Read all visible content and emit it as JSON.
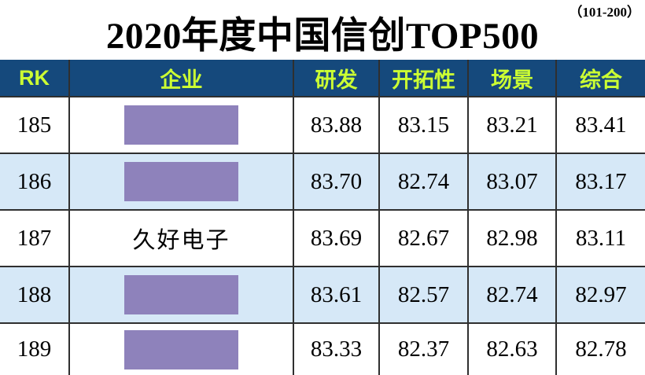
{
  "page": {
    "title": "2020年度中国信创TOP500",
    "range_note": "（101-200）"
  },
  "colors": {
    "header_bg": "#15497C",
    "header_text": "#CCFF33",
    "row_alt_bg": "#D6E8F7",
    "row_bg": "#FFFFFF",
    "redaction_fill": "#8E82BB",
    "grid_line": "#2F2F2F",
    "title_text": "#000000"
  },
  "chart_data": {
    "type": "table",
    "title": "2020年度中国信创TOP500",
    "range_note": "（101-200）",
    "columns": [
      "RK",
      "企业",
      "研发",
      "开拓性",
      "场景",
      "综合"
    ],
    "rows": [
      {
        "rk": "185",
        "company": "",
        "redacted": true,
        "rd": "83.88",
        "pioneer": "83.15",
        "scene": "83.21",
        "overall": "83.41"
      },
      {
        "rk": "186",
        "company": "",
        "redacted": true,
        "rd": "83.70",
        "pioneer": "82.74",
        "scene": "83.07",
        "overall": "83.17"
      },
      {
        "rk": "187",
        "company": "久好电子",
        "redacted": false,
        "rd": "83.69",
        "pioneer": "82.67",
        "scene": "82.98",
        "overall": "83.11"
      },
      {
        "rk": "188",
        "company": "",
        "redacted": true,
        "rd": "83.61",
        "pioneer": "82.57",
        "scene": "82.74",
        "overall": "82.97"
      },
      {
        "rk": "189",
        "company": "",
        "redacted": true,
        "rd": "83.33",
        "pioneer": "82.37",
        "scene": "82.63",
        "overall": "82.78"
      }
    ]
  }
}
